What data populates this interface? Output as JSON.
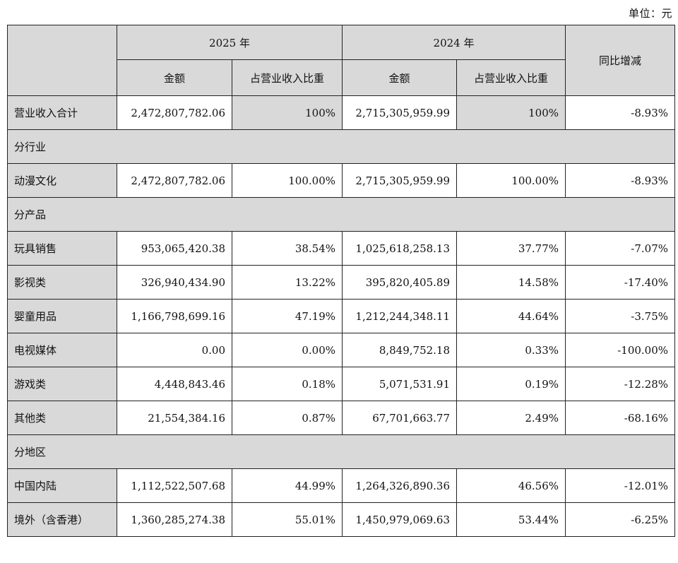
{
  "unit_label": "单位：元",
  "header": {
    "year_2025": "2025 年",
    "year_2024": "2024 年",
    "amount": "金额",
    "share": "占营业收入比重",
    "yoy": "同比增减"
  },
  "total": {
    "label": "营业收入合计",
    "amount_2025": "2,472,807,782.06",
    "share_2025": "100%",
    "amount_2024": "2,715,305,959.99",
    "share_2024": "100%",
    "yoy": "-8.93%"
  },
  "sections": [
    {
      "title": "分行业",
      "rows": [
        {
          "label": "动漫文化",
          "amount_2025": "2,472,807,782.06",
          "share_2025": "100.00%",
          "amount_2024": "2,715,305,959.99",
          "share_2024": "100.00%",
          "yoy": "-8.93%"
        }
      ]
    },
    {
      "title": "分产品",
      "rows": [
        {
          "label": "玩具销售",
          "amount_2025": "953,065,420.38",
          "share_2025": "38.54%",
          "amount_2024": "1,025,618,258.13",
          "share_2024": "37.77%",
          "yoy": "-7.07%"
        },
        {
          "label": "影视类",
          "amount_2025": "326,940,434.90",
          "share_2025": "13.22%",
          "amount_2024": "395,820,405.89",
          "share_2024": "14.58%",
          "yoy": "-17.40%"
        },
        {
          "label": "婴童用品",
          "amount_2025": "1,166,798,699.16",
          "share_2025": "47.19%",
          "amount_2024": "1,212,244,348.11",
          "share_2024": "44.64%",
          "yoy": "-3.75%"
        },
        {
          "label": "电视媒体",
          "amount_2025": "0.00",
          "share_2025": "0.00%",
          "amount_2024": "8,849,752.18",
          "share_2024": "0.33%",
          "yoy": "-100.00%"
        },
        {
          "label": "游戏类",
          "amount_2025": "4,448,843.46",
          "share_2025": "0.18%",
          "amount_2024": "5,071,531.91",
          "share_2024": "0.19%",
          "yoy": "-12.28%"
        },
        {
          "label": "其他类",
          "amount_2025": "21,554,384.16",
          "share_2025": "0.87%",
          "amount_2024": "67,701,663.77",
          "share_2024": "2.49%",
          "yoy": "-68.16%"
        }
      ]
    },
    {
      "title": "分地区",
      "rows": [
        {
          "label": "中国内陆",
          "amount_2025": "1,112,522,507.68",
          "share_2025": "44.99%",
          "amount_2024": "1,264,326,890.36",
          "share_2024": "46.56%",
          "yoy": "-12.01%"
        },
        {
          "label": "境外（含香港）",
          "amount_2025": "1,360,285,274.38",
          "share_2025": "55.01%",
          "amount_2024": "1,450,979,069.63",
          "share_2024": "53.44%",
          "yoy": "-6.25%"
        }
      ]
    }
  ]
}
